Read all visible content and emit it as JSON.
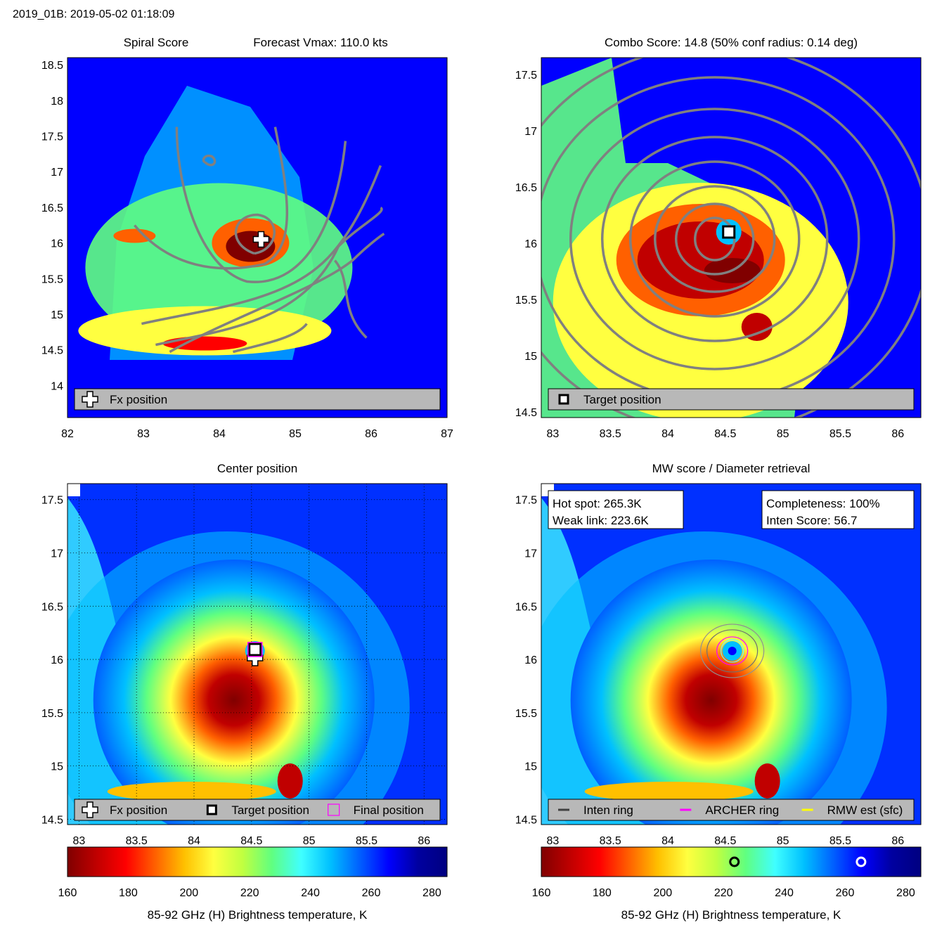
{
  "header": {
    "title": "2019_01B: 2019-05-02 01:18:09"
  },
  "palette": {
    "jet": [
      "#800000",
      "#c00000",
      "#ff0000",
      "#ff6000",
      "#ffc000",
      "#ffff40",
      "#c0ff40",
      "#60ff80",
      "#40ffff",
      "#00c0ff",
      "#0060ff",
      "#0000ff",
      "#0000a0",
      "#000080"
    ],
    "contour": "#808080",
    "legend_bg": "#b8b8b8"
  },
  "chart_data": [
    {
      "id": "spiral",
      "type": "heatmap",
      "title_left": "Spiral Score",
      "title_right": "Forecast Vmax: 110.0 kts",
      "xlim": [
        82,
        87
      ],
      "ylim": [
        13.55,
        18.6
      ],
      "xticks": [
        82,
        83,
        84,
        85,
        86,
        87
      ],
      "yticks": [
        14,
        14.5,
        15,
        15.5,
        16,
        16.5,
        17,
        17.5,
        18,
        18.5
      ],
      "marker": {
        "type": "cross",
        "x": 84.55,
        "y": 16.05
      },
      "legend": [
        {
          "symbol": "cross",
          "label": "Fx position"
        }
      ]
    },
    {
      "id": "combo",
      "type": "heatmap",
      "title": "Combo Score: 14.8  (50% conf radius: 0.14 deg)",
      "xlim": [
        82.9,
        86.2
      ],
      "ylim": [
        14.45,
        17.65
      ],
      "xticks": [
        83,
        83.5,
        84,
        84.5,
        85,
        85.5,
        86
      ],
      "yticks": [
        14.5,
        15,
        15.5,
        16,
        16.5,
        17,
        17.5
      ],
      "marker": {
        "type": "square",
        "x": 84.53,
        "y": 16.1
      },
      "legend": [
        {
          "symbol": "square",
          "label": "Target position"
        }
      ]
    },
    {
      "id": "center",
      "type": "heatmap",
      "title": "Center position",
      "xlim": [
        82.9,
        86.2
      ],
      "ylim": [
        14.45,
        17.65
      ],
      "xticks": [
        83,
        83.5,
        84,
        84.5,
        85,
        85.5,
        86
      ],
      "yticks": [
        14.5,
        15,
        15.5,
        16,
        16.5,
        17,
        17.5
      ],
      "marker": {
        "type": "all",
        "x": 84.53,
        "y": 16.08
      },
      "legend": [
        {
          "symbol": "cross",
          "label": "Fx position"
        },
        {
          "symbol": "square",
          "label": "Target position"
        },
        {
          "symbol": "magenta-square",
          "label": "Final position"
        }
      ]
    },
    {
      "id": "mw",
      "type": "heatmap",
      "title": "MW score / Diameter retrieval",
      "xlim": [
        82.9,
        86.2
      ],
      "ylim": [
        14.45,
        17.65
      ],
      "xticks": [
        83,
        83.5,
        84,
        84.5,
        85,
        85.5,
        86
      ],
      "yticks": [
        14.5,
        15,
        15.5,
        16,
        16.5,
        17,
        17.5
      ],
      "marker": {
        "type": "rings",
        "x": 84.56,
        "y": 16.08
      },
      "info_left": [
        "Hot spot: 265.3K",
        "Weak link: 223.6K"
      ],
      "info_right": [
        "Completeness: 100%",
        "Inten Score: 56.7"
      ],
      "legend": [
        {
          "symbol": "line-dark",
          "label": "Inten ring"
        },
        {
          "symbol": "line-magenta",
          "label": "ARCHER ring"
        },
        {
          "symbol": "line-yellow",
          "label": "RMW est (sfc)"
        }
      ]
    }
  ],
  "colorbars": [
    {
      "id": "cb-left",
      "range": [
        160,
        285
      ],
      "ticks": [
        160,
        180,
        200,
        220,
        240,
        260,
        280
      ],
      "label": "85-92 GHz (H) Brightness temperature, K",
      "markers": []
    },
    {
      "id": "cb-right",
      "range": [
        160,
        285
      ],
      "ticks": [
        160,
        180,
        200,
        220,
        240,
        260,
        280
      ],
      "label": "85-92 GHz (H) Brightness temperature, K",
      "markers": [
        {
          "value": 223.6,
          "style": "dark-ring"
        },
        {
          "value": 265.3,
          "style": "white-ring"
        }
      ]
    }
  ]
}
